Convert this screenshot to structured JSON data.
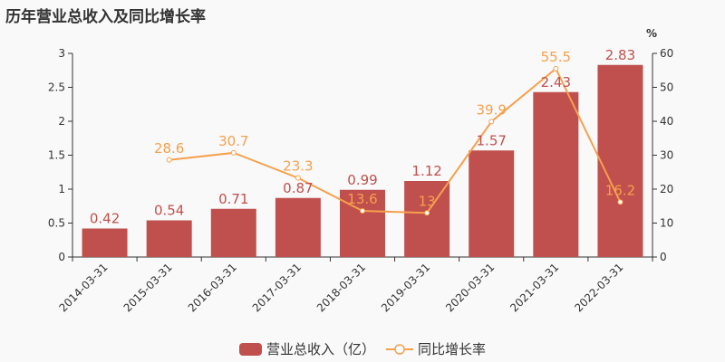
{
  "title": "历年营业总收入及同比增长率",
  "chart_data": {
    "type": "bar+line",
    "title": "历年营业总收入及同比增长率",
    "categories": [
      "2014-03-31",
      "2015-03-31",
      "2016-03-31",
      "2017-03-31",
      "2018-03-31",
      "2019-03-31",
      "2020-03-31",
      "2021-03-31",
      "2022-03-31"
    ],
    "series": [
      {
        "name": "营业总收入（亿）",
        "type": "bar",
        "axis": "left",
        "values": [
          0.42,
          0.54,
          0.71,
          0.87,
          0.99,
          1.12,
          1.57,
          2.43,
          2.83
        ],
        "labels": [
          "0.42",
          "0.54",
          "0.71",
          "0.87",
          "0.99",
          "1.12",
          "1.57",
          "2.43",
          "2.83"
        ]
      },
      {
        "name": "同比增长率",
        "type": "line",
        "axis": "right",
        "values": [
          null,
          28.6,
          30.7,
          23.3,
          13.6,
          13,
          39.9,
          55.5,
          16.2
        ],
        "labels": [
          "",
          "28.6",
          "30.7",
          "23.3",
          "13.6",
          "13",
          "39.9",
          "55.5",
          "16.2"
        ]
      }
    ],
    "y_left": {
      "range": [
        0,
        3
      ],
      "ticks": [
        "0",
        "0.5",
        "1",
        "1.5",
        "2",
        "2.5",
        "3"
      ]
    },
    "y_right": {
      "range": [
        0,
        60
      ],
      "label": "%",
      "ticks": [
        "0",
        "10",
        "20",
        "30",
        "40",
        "50",
        "60"
      ]
    },
    "grid": false,
    "legend_position": "bottom",
    "colors": {
      "bar": "#c0504d",
      "line": "#f6a04d"
    }
  }
}
